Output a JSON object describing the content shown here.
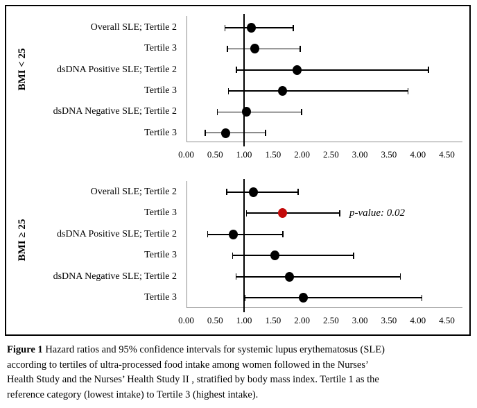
{
  "colors": {
    "marker_black": "#000000",
    "marker_red": "#c30a0a",
    "axis_grey": "#8c8c8c",
    "reference_line": "#000000",
    "border": "#000000"
  },
  "axis": {
    "min": 0.0,
    "max": 4.5,
    "step": 0.5,
    "ticks": [
      "0.00",
      "0.50",
      "1.00",
      "1.50",
      "2.00",
      "2.50",
      "3.00",
      "3.50",
      "4.00",
      "4.50"
    ],
    "reference_value": 1.0
  },
  "chart_data": [
    {
      "type": "scatter",
      "variant": "forest-plot",
      "panel_label": "BMI < 25",
      "categories": [
        "Overall SLE; Tertile 2",
        "Tertile 3",
        "dsDNA Positive SLE; Tertile 2",
        "Tertile 3",
        "dsDNA Negative SLE; Tertile 2",
        "Tertile 3"
      ],
      "points": [
        {
          "hr": 1.12,
          "ci": [
            0.67,
            1.85
          ],
          "color": "#000000"
        },
        {
          "hr": 1.19,
          "ci": [
            0.71,
            1.97
          ],
          "color": "#000000"
        },
        {
          "hr": 1.91,
          "ci": [
            0.87,
            4.18
          ],
          "color": "#000000"
        },
        {
          "hr": 1.66,
          "ci": [
            0.73,
            3.83
          ],
          "color": "#000000"
        },
        {
          "hr": 1.04,
          "ci": [
            0.54,
            1.99
          ],
          "color": "#000000"
        },
        {
          "hr": 0.68,
          "ci": [
            0.33,
            1.37
          ],
          "color": "#000000"
        }
      ],
      "xlim": [
        0.0,
        4.5
      ],
      "x_ticks": [
        "0.00",
        "0.50",
        "1.00",
        "1.50",
        "2.00",
        "2.50",
        "3.00",
        "3.50",
        "4.00",
        "4.50"
      ],
      "reference_line": 1.0,
      "grid": false,
      "legend": false
    },
    {
      "type": "scatter",
      "variant": "forest-plot",
      "panel_label": "BMI ≥ 25",
      "categories": [
        "Overall SLE; Tertile 2",
        "Tertile 3",
        "dsDNA Positive SLE; Tertile 2",
        "Tertile 3",
        "dsDNA Negative SLE; Tertile 2",
        "Tertile 3"
      ],
      "points": [
        {
          "hr": 1.16,
          "ci": [
            0.7,
            1.93
          ],
          "color": "#000000"
        },
        {
          "hr": 1.66,
          "ci": [
            1.04,
            2.65
          ],
          "color": "#c30a0a",
          "annotation": "p-value: 0.02"
        },
        {
          "hr": 0.81,
          "ci": [
            0.37,
            1.67
          ],
          "color": "#000000"
        },
        {
          "hr": 1.53,
          "ci": [
            0.8,
            2.89
          ],
          "color": "#000000"
        },
        {
          "hr": 1.78,
          "ci": [
            0.86,
            3.7
          ],
          "color": "#000000"
        },
        {
          "hr": 2.02,
          "ci": [
            1.01,
            4.07
          ],
          "color": "#000000"
        }
      ],
      "xlim": [
        0.0,
        4.5
      ],
      "x_ticks": [
        "0.00",
        "0.50",
        "1.00",
        "1.50",
        "2.00",
        "2.50",
        "3.00",
        "3.50",
        "4.00",
        "4.50"
      ],
      "reference_line": 1.0,
      "grid": false,
      "legend": false
    }
  ],
  "caption": {
    "label": "Figure 1",
    "lines": [
      "Hazard ratios and 95% confidence intervals for systemic lupus erythematosus (SLE)",
      "according to tertiles of ultra-processed food intake among women followed in the Nurses’",
      "Health Study and the Nurses’ Health Study II , stratified by body mass index. Tertile 1 as the",
      "reference category (lowest intake) to Tertile 3 (highest intake)."
    ]
  }
}
